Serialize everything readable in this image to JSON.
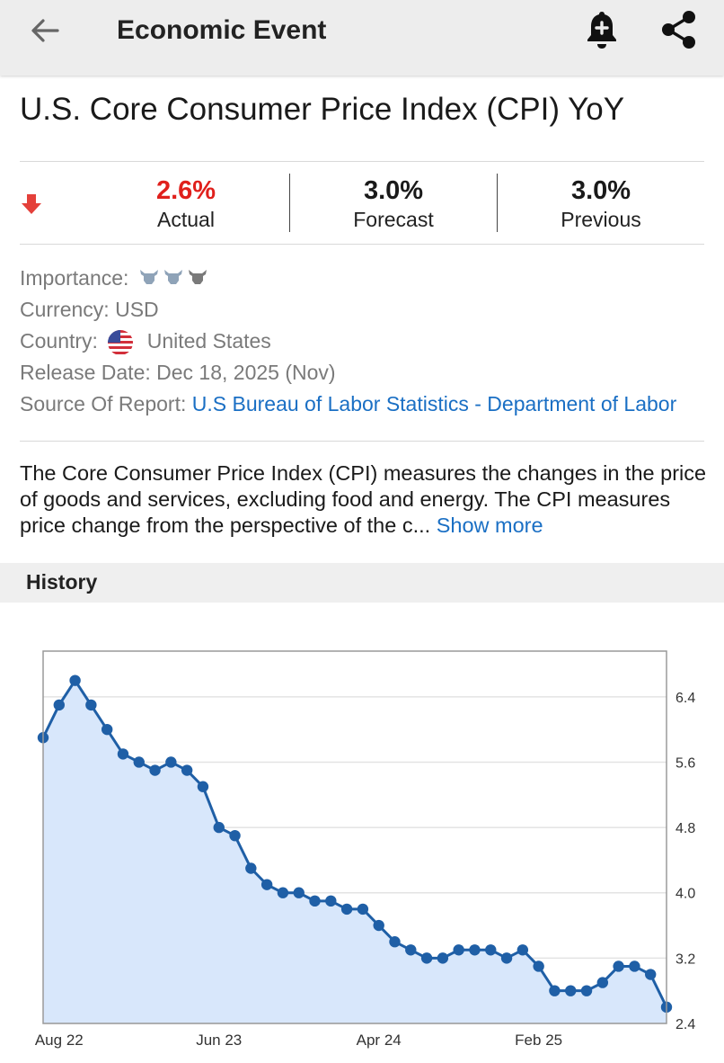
{
  "header": {
    "title": "Economic Event",
    "back_icon": "arrow-left-icon",
    "alert_icon": "bell-plus-icon",
    "share_icon": "share-icon"
  },
  "event": {
    "title": "U.S. Core Consumer Price Index (CPI) YoY",
    "direction_icon": "arrow-down-icon",
    "actual_value": "2.6%",
    "actual_label": "Actual",
    "forecast_value": "3.0%",
    "forecast_label": "Forecast",
    "previous_value": "3.0%",
    "previous_label": "Previous",
    "actual_color": "#e0201c"
  },
  "details": {
    "importance_label": "Importance:",
    "importance_level": 3,
    "currency_label": "Currency:",
    "currency_value": "USD",
    "country_label": "Country:",
    "country_value": "United States",
    "release_label": "Release Date:",
    "release_value": "Dec 18, 2025 (Nov)",
    "source_label": "Source Of Report:",
    "source_value": "U.S Bureau of Labor Statistics - Department of Labor"
  },
  "description": {
    "text": "The Core Consumer Price Index (CPI) measures the changes in the price of goods and services, excluding food and energy. The CPI measures price change from the perspective of the c...",
    "show_more": "Show more"
  },
  "history": {
    "title": "History"
  },
  "chart_data": {
    "type": "area",
    "title": "",
    "xlabel": "",
    "ylabel": "",
    "ylim": [
      2.4,
      6.96
    ],
    "yticks": [
      2.4,
      3.2,
      4.0,
      4.8,
      5.6,
      6.4
    ],
    "ytick_labels": [
      "2.4",
      "3.2",
      "4.0",
      "4.8",
      "5.6",
      "6.4"
    ],
    "xtick_labels": [
      "Aug 22",
      "Jun 23",
      "Apr 24",
      "Feb 25"
    ],
    "xtick_indices": [
      1,
      11,
      21,
      31
    ],
    "series": [
      {
        "name": "Core CPI YoY",
        "values": [
          5.9,
          6.3,
          6.6,
          6.3,
          6.0,
          5.7,
          5.6,
          5.5,
          5.6,
          5.5,
          5.3,
          4.8,
          4.7,
          4.3,
          4.1,
          4.0,
          4.0,
          3.9,
          3.9,
          3.8,
          3.8,
          3.6,
          3.4,
          3.3,
          3.2,
          3.2,
          3.3,
          3.3,
          3.3,
          3.2,
          3.3,
          3.1,
          2.8,
          2.8,
          2.8,
          2.9,
          3.1,
          3.1,
          3.0,
          2.6
        ]
      }
    ],
    "colors": {
      "line": "#1f5fa6",
      "fill": "#d8e7fb",
      "grid": "#e3e3e3",
      "frame": "#9a9a9a"
    }
  }
}
